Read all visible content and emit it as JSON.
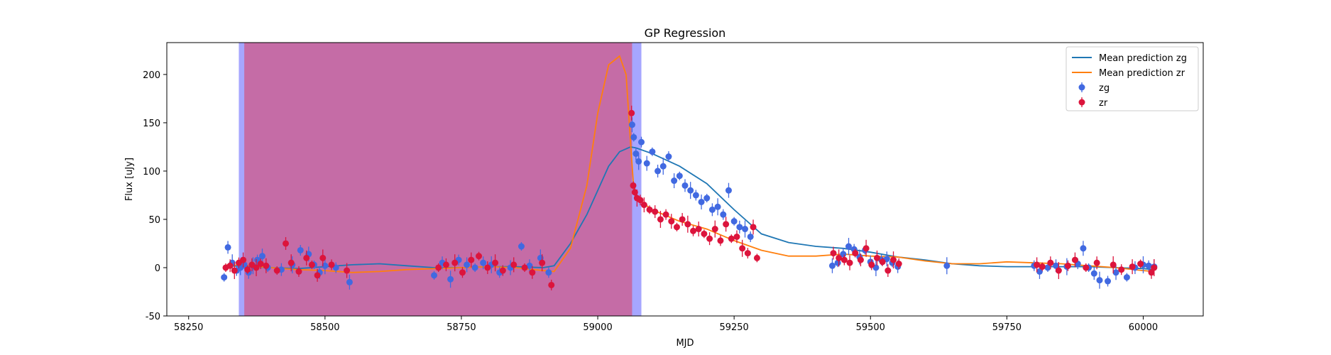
{
  "chart_data": {
    "type": "scatter",
    "title": "GP Regression",
    "xlabel": "MJD",
    "ylabel": "Flux [uJy]",
    "xlim": [
      58210,
      60110
    ],
    "ylim": [
      -50,
      233
    ],
    "xticks": [
      58250,
      58500,
      58750,
      59000,
      59250,
      59500,
      59750,
      60000
    ],
    "yticks": [
      -50,
      0,
      50,
      100,
      150,
      200
    ],
    "legend_position": "top-right",
    "legend": [
      "Mean prediction zg",
      "Mean prediction zr",
      "zg",
      "zr"
    ],
    "spans": [
      {
        "name": "zg",
        "x": [
          58342,
          59080
        ],
        "color": "#0000ff",
        "opacity": 0.35
      },
      {
        "name": "zr",
        "x": [
          58352,
          59063
        ],
        "color": "#ff0000",
        "opacity": 0.35
      }
    ],
    "colors": {
      "zg_points": "#4169e1",
      "zr_points": "#dc143c",
      "zg_line": "#1f77b4",
      "zr_line": "#ff7f0e"
    },
    "series": [
      {
        "name": "Mean prediction zg",
        "kind": "line",
        "x": [
          58320,
          58360,
          58400,
          58450,
          58500,
          58550,
          58600,
          58650,
          58700,
          58750,
          58800,
          58850,
          58900,
          58920,
          58950,
          58980,
          59000,
          59020,
          59040,
          59060,
          59070,
          59100,
          59150,
          59200,
          59250,
          59300,
          59350,
          59400,
          59450,
          59500,
          59550,
          59600,
          59650,
          59700,
          59750,
          59800,
          59850,
          59900,
          59950,
          60000,
          60020
        ],
        "y": [
          2,
          1,
          0,
          -1,
          1,
          3,
          4,
          2,
          0,
          0,
          1,
          1,
          0,
          2,
          25,
          55,
          80,
          105,
          120,
          125,
          124,
          118,
          105,
          87,
          60,
          35,
          26,
          22,
          20,
          16,
          11,
          8,
          4,
          2,
          1,
          1,
          1,
          1,
          0,
          -1,
          -2
        ]
      },
      {
        "name": "Mean prediction zr",
        "kind": "line",
        "x": [
          58320,
          58360,
          58400,
          58450,
          58500,
          58550,
          58600,
          58650,
          58700,
          58750,
          58800,
          58850,
          58900,
          58920,
          58950,
          58980,
          59000,
          59020,
          59040,
          59052,
          59060,
          59065,
          59070,
          59100,
          59150,
          59200,
          59250,
          59300,
          59350,
          59400,
          59450,
          59500,
          59550,
          59600,
          59650,
          59700,
          59750,
          59800,
          59850,
          59900,
          59950,
          60000,
          60020
        ],
        "y": [
          3,
          2,
          0,
          -2,
          -3,
          -5,
          -4,
          -2,
          -1,
          0,
          1,
          0,
          -3,
          -4,
          20,
          85,
          160,
          210,
          219,
          200,
          130,
          90,
          72,
          60,
          48,
          40,
          28,
          18,
          12,
          12,
          14,
          12,
          11,
          7,
          4,
          4,
          6,
          5,
          4,
          2,
          0,
          -3,
          -4
        ]
      },
      {
        "name": "zg",
        "kind": "points",
        "x": [
          58315,
          58322,
          58330,
          58338,
          58345,
          58352,
          58360,
          58368,
          58376,
          58385,
          58395,
          58420,
          58440,
          58455,
          58470,
          58480,
          58490,
          58500,
          58520,
          58545,
          58700,
          58715,
          58730,
          58745,
          58760,
          58775,
          58790,
          58805,
          58820,
          58840,
          58860,
          58875,
          58895,
          58910,
          59063,
          59066,
          59070,
          59075,
          59080,
          59090,
          59100,
          59110,
          59120,
          59130,
          59140,
          59150,
          59160,
          59170,
          59180,
          59190,
          59200,
          59210,
          59220,
          59230,
          59240,
          59250,
          59260,
          59270,
          59280,
          59430,
          59440,
          59450,
          59460,
          59470,
          59480,
          59490,
          59500,
          59510,
          59520,
          59530,
          59540,
          59550,
          59640,
          59800,
          59810,
          59825,
          59840,
          59860,
          59880,
          59890,
          59900,
          59910,
          59920,
          59935,
          59950,
          59970,
          59985,
          60000,
          60010,
          60020
        ],
        "y": [
          -10,
          21,
          5,
          -3,
          0,
          3,
          -5,
          2,
          8,
          12,
          0,
          -2,
          3,
          18,
          14,
          3,
          -5,
          2,
          0,
          -15,
          -8,
          5,
          -12,
          8,
          3,
          0,
          5,
          3,
          -5,
          0,
          22,
          2,
          10,
          -5,
          148,
          135,
          118,
          110,
          130,
          108,
          120,
          100,
          105,
          115,
          90,
          95,
          85,
          80,
          75,
          68,
          72,
          60,
          63,
          55,
          80,
          48,
          42,
          40,
          32,
          2,
          5,
          14,
          22,
          19,
          11,
          18,
          6,
          0,
          8,
          9,
          5,
          1,
          2,
          2,
          -4,
          0,
          2,
          1,
          4,
          20,
          0,
          -6,
          -13,
          -14,
          -5,
          -10,
          0,
          3,
          2,
          1
        ]
      },
      {
        "name": "zr",
        "kind": "points",
        "x": [
          58318,
          58326,
          58334,
          58342,
          58350,
          58358,
          58366,
          58374,
          58382,
          58392,
          58412,
          58428,
          58438,
          58452,
          58466,
          58476,
          58486,
          58496,
          58512,
          58540,
          58708,
          58722,
          58738,
          58752,
          58768,
          58782,
          58798,
          58812,
          58826,
          58846,
          58866,
          58880,
          58898,
          58915,
          59062,
          59065,
          59068,
          59072,
          59078,
          59085,
          59095,
          59105,
          59115,
          59125,
          59135,
          59145,
          59155,
          59165,
          59175,
          59185,
          59195,
          59205,
          59215,
          59225,
          59235,
          59245,
          59255,
          59265,
          59275,
          59285,
          59292,
          59432,
          59442,
          59452,
          59462,
          59472,
          59482,
          59492,
          59502,
          59512,
          59522,
          59532,
          59542,
          59552,
          59805,
          59815,
          59830,
          59845,
          59862,
          59875,
          59895,
          59915,
          59945,
          59960,
          59980,
          59995,
          60015,
          60020
        ],
        "y": [
          0,
          2,
          -3,
          5,
          8,
          -2,
          3,
          0,
          4,
          2,
          -3,
          25,
          5,
          -4,
          10,
          3,
          -8,
          10,
          3,
          -3,
          0,
          3,
          5,
          -5,
          8,
          12,
          0,
          5,
          -3,
          3,
          0,
          -5,
          5,
          -18,
          160,
          85,
          78,
          72,
          70,
          65,
          60,
          58,
          50,
          55,
          48,
          42,
          50,
          45,
          38,
          40,
          35,
          30,
          40,
          28,
          45,
          30,
          32,
          20,
          15,
          42,
          10,
          15,
          10,
          8,
          5,
          15,
          8,
          20,
          3,
          10,
          6,
          -3,
          8,
          4,
          3,
          1,
          5,
          -3,
          2,
          8,
          0,
          5,
          3,
          -2,
          1,
          4,
          -5,
          0
        ]
      }
    ]
  }
}
